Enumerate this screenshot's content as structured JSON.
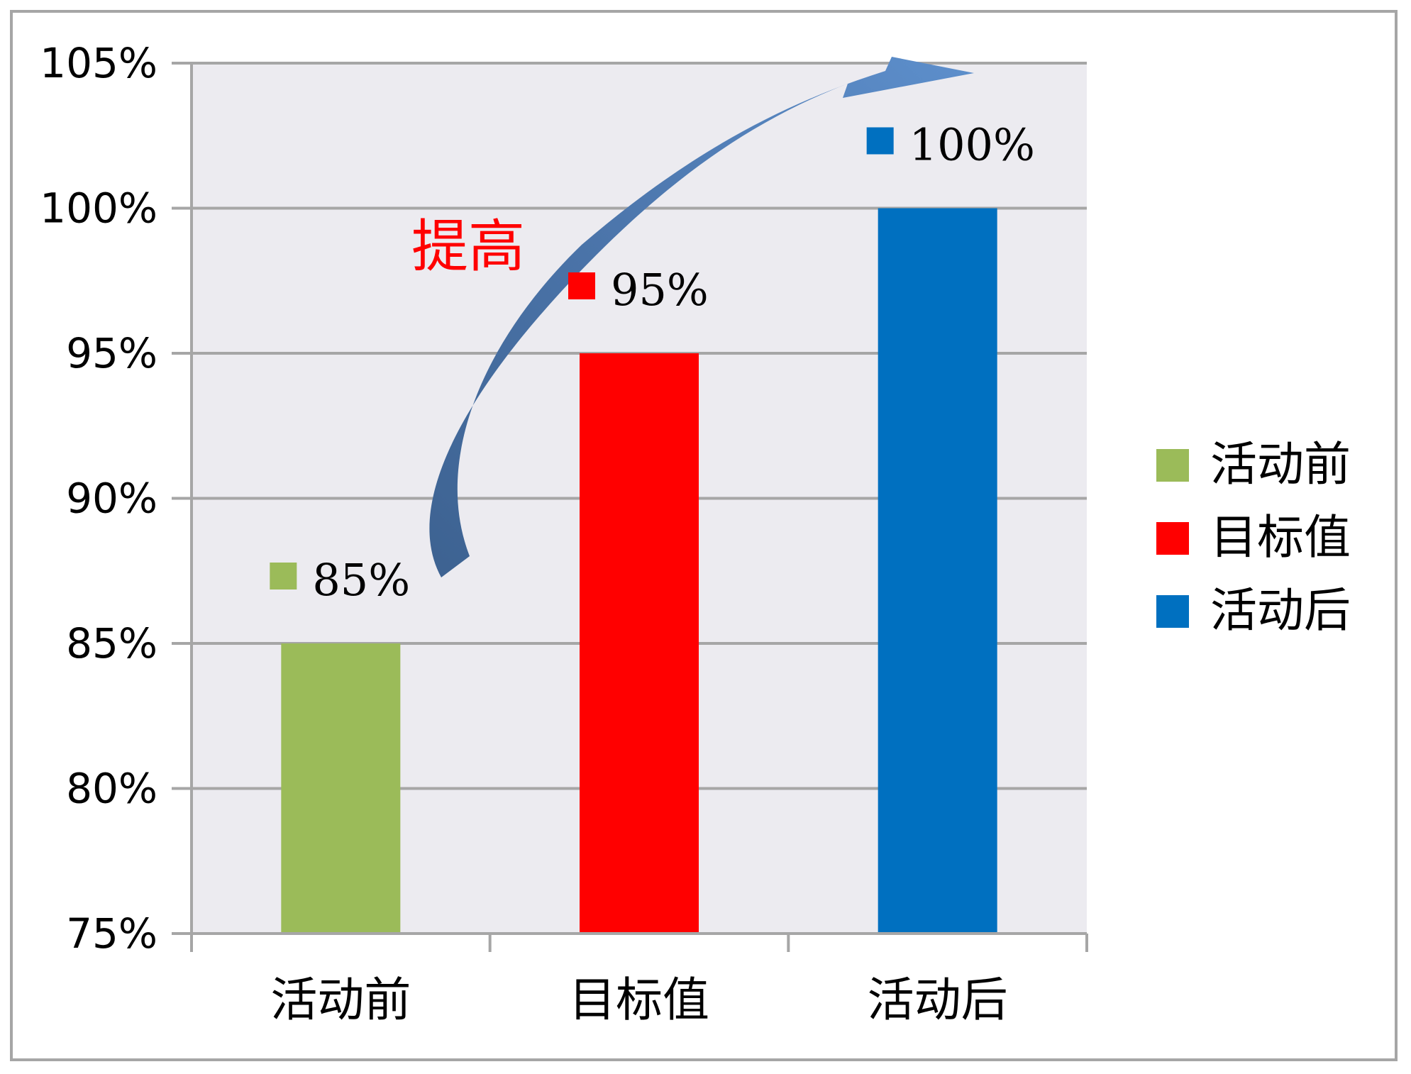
{
  "chart_data": {
    "type": "bar",
    "categories": [
      "活动前",
      "目标值",
      "活动后"
    ],
    "values": [
      85,
      95,
      100
    ],
    "colors": [
      "#9bbb59",
      "#ff0000",
      "#0070c0"
    ],
    "value_unit": "%",
    "data_labels": [
      "85%",
      "95%",
      "100%"
    ],
    "ylim": [
      75,
      105
    ],
    "yticks": [
      75,
      80,
      85,
      90,
      95,
      100,
      105
    ],
    "ytick_labels": [
      "75%",
      "80%",
      "85%",
      "90%",
      "95%",
      "100%",
      "105%"
    ],
    "grid": true,
    "plot_background": "#ecebf0",
    "legend": {
      "placement": "right",
      "entries": [
        "活动前",
        "目标值",
        "活动后"
      ]
    },
    "annotation": {
      "text": "提高",
      "color": "#ff0000",
      "arrow_color": "#4f81bd"
    }
  }
}
